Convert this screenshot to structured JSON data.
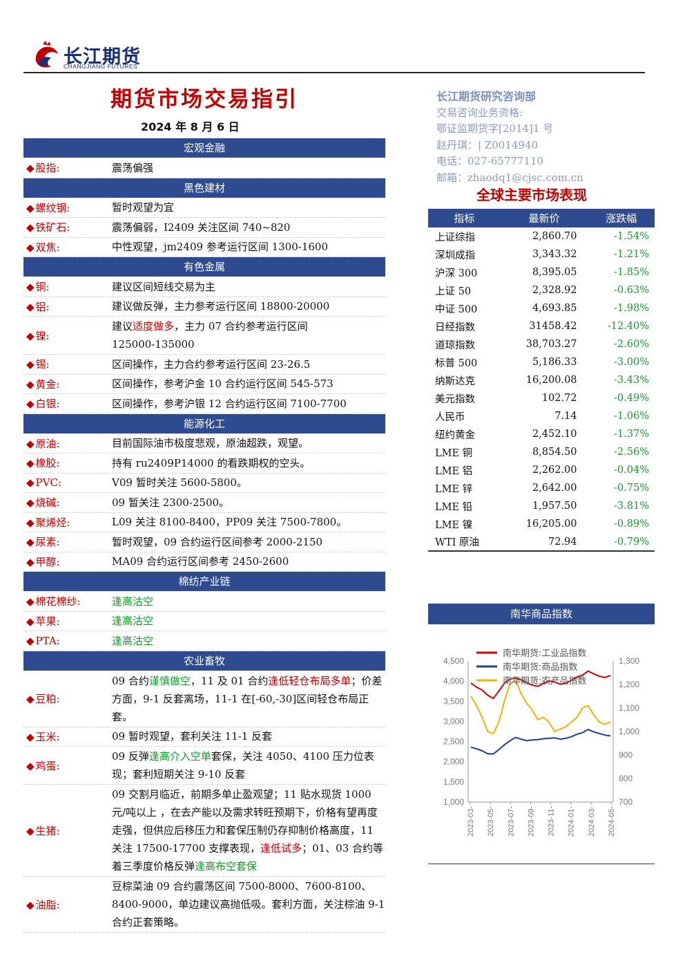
{
  "header": {
    "logo_cn": "长江期货",
    "logo_en": "CHANGJIANG FUTURES",
    "title": "期货市场交易指引",
    "date": "2024 年 8 月 6 日"
  },
  "contact": {
    "dept": "长江期货研究咨询部",
    "line1": "交易咨询业务资格:",
    "line2": "鄂证监期货字[2014]1 号",
    "line3": "赵丹琪：| Z0014940",
    "line4": "电话：027-65777110",
    "line5": "邮箱：zhaodq1@cjsc.com.cn"
  },
  "sections": {
    "macro": "宏观金融",
    "black": "黑色建材",
    "nonferrous": "有色金属",
    "energy": "能源化工",
    "cotton": "棉纺产业链",
    "agri": "农业畜牧"
  },
  "items": {
    "stock": {
      "label": "股指:",
      "v": "震荡偏强"
    },
    "rebar": {
      "label": "螺纹钢:",
      "v": "暂时观望为宜"
    },
    "iron": {
      "label": "铁矿石:",
      "v": "震荡偏弱，I2409 关注区间 740~820"
    },
    "coke": {
      "label": "双焦:",
      "v": "中性观望，jm2409 参考运行区间 1300-1600"
    },
    "copper": {
      "label": "铜:",
      "v": "建议区间短线交易为主"
    },
    "alu": {
      "label": "铝:",
      "v": "建议做反弹，主力参考运行区间 18800-20000"
    },
    "nickel": {
      "label": "镍:",
      "v1": "建议",
      "v2": "适度做多",
      "v3": "，主力 07 合约参考运行区间",
      "v4": "125000-135000"
    },
    "tin": {
      "label": "锡:",
      "v": "区间操作，主力合约参考运行区间 23-26.5"
    },
    "gold": {
      "label": "黄金:",
      "v": "区间操作，参考沪金 10 合约运行区间 545-573"
    },
    "silver": {
      "label": "白银:",
      "v": "区间操作，参考沪银 12 合约运行区间 7100-7700"
    },
    "crude": {
      "label": "原油:",
      "v": "目前国际油市极度悲观，原油超跌，观望。"
    },
    "rubber": {
      "label": "橡胶:",
      "v": "持有 ru2409P14000 的看跌期权的空头。"
    },
    "pvc": {
      "label": "PVC:",
      "v": "V09 暂时关注 5600-5800。"
    },
    "soda": {
      "label": "烧碱:",
      "v": "09 暂关注 2300-2500。"
    },
    "polyolefin": {
      "label": "聚烯烃:",
      "v": "L09 关注 8100-8400，PP09 关注 7500-7800。"
    },
    "urea": {
      "label": "尿素:",
      "v": "暂时观望，09 合约运行区间参考 2000-2150"
    },
    "methanol": {
      "label": "甲醇:",
      "v": "MA09 合约运行区间参考 2450-2600"
    },
    "cottonyarn": {
      "label": "棉花棉纱:",
      "v": "逢高沽空"
    },
    "apple": {
      "label": "苹果:",
      "v": "逢高沽空"
    },
    "pta": {
      "label": "PTA:",
      "v": "逢高沽空"
    },
    "soymeal": {
      "label": "豆粕:",
      "a": "09 合约",
      "b": "谨慎做空",
      "c": "，11 及 01 合约",
      "d": "逢低轻仓布局多单",
      "e": "；价差方面，9-1 反套离场，11-1 在[-60,-30]区间轻仓布局正套。"
    },
    "corn": {
      "label": "玉米:",
      "v": "09 暂时观望，套利关注 11-1 反套"
    },
    "egg": {
      "label": "鸡蛋:",
      "a": "09 反弹",
      "b": "逢高介入空单",
      "c": "套保，关注 4050、4100 压力位表现；套利短期关注 9-10 反套"
    },
    "hog": {
      "label": "生猪:",
      "a": "09 交割月临近，前期多单止盈观望；11 贴水现货 1000 元/吨以上 ，在去产能以及需求转旺预期下，价格有望再度走强，但供应后移压力和套保压制仍存抑制价格高度，11 关注 17500-17700 支撑表现，",
      "b": "逢低试多",
      "c": "；01、03 合约等着三季度价格反弹",
      "d": "逢高布空套保"
    },
    "oil": {
      "label": "油脂:",
      "v": "豆棕菜油 09 合约震荡区间 7500-8000、7600-8100、8400-9000，单边建议高抛低吸。套利方面，关注棕油 9-1 合约正套策略。"
    }
  },
  "market": {
    "title": "全球主要市场表现",
    "headers": [
      "指标",
      "最新价",
      "涨跌幅"
    ],
    "rows": [
      {
        "name": "上证综指",
        "price": "2,860.70",
        "chg": "-1.54%"
      },
      {
        "name": "深圳成指",
        "price": "3,343.32",
        "chg": "-1.21%"
      },
      {
        "name": "沪深 300",
        "price": "8,395.05",
        "chg": "-1.85%"
      },
      {
        "name": "上证 50",
        "price": "2,328.92",
        "chg": "-0.63%"
      },
      {
        "name": "中证 500",
        "price": "4,693.85",
        "chg": "-1.98%"
      },
      {
        "name": "日经指数",
        "price": "31458.42",
        "chg": "-12.40%"
      },
      {
        "name": "道琼指数",
        "price": "38,703.27",
        "chg": "-2.60%"
      },
      {
        "name": "标普 500",
        "price": "5,186.33",
        "chg": "-3.00%"
      },
      {
        "name": "纳斯达克",
        "price": "16,200.08",
        "chg": "-3.43%"
      },
      {
        "name": "美元指数",
        "price": "102.72",
        "chg": "-0.49%"
      },
      {
        "name": "人民币",
        "price": "7.14",
        "chg": "-1.06%"
      },
      {
        "name": "纽约黄金",
        "price": "2,452.10",
        "chg": "-1.37%"
      },
      {
        "name": "LME 铜",
        "price": "8,854.50",
        "chg": "-2.56%"
      },
      {
        "name": "LME 铝",
        "price": "2,262.00",
        "chg": "-0.04%"
      },
      {
        "name": "LME 锌",
        "price": "2,642.00",
        "chg": "-0.75%"
      },
      {
        "name": "LME 铅",
        "price": "1,957.50",
        "chg": "-3.81%"
      },
      {
        "name": "LME 镍",
        "price": "16,205.00",
        "chg": "-0.89%"
      },
      {
        "name": "WTI 原油",
        "price": "72.94",
        "chg": "-0.79%"
      }
    ]
  },
  "nanhua_title": "南华商品指数",
  "chart_data": {
    "type": "line",
    "title": "",
    "left_ylim": [
      1000,
      4500
    ],
    "left_ticks": [
      "4,500",
      "4,000",
      "3,500",
      "3,000",
      "2,500",
      "2,000",
      "1,500",
      "1,000"
    ],
    "right_ylim": [
      700,
      1300
    ],
    "right_ticks": [
      "1,300",
      "1,200",
      "1,100",
      "1,000",
      "900",
      "800",
      "700"
    ],
    "x_ticks": [
      "2023-03-",
      "2023-05-",
      "2023-07-",
      "2023-09-",
      "2023-11-",
      "2024-01-",
      "2024-03-",
      "2024-05-"
    ],
    "series": [
      {
        "name": "南华期货:工业品指数",
        "axis": "left",
        "color": "#d40000",
        "values": [
          3950,
          3850,
          3780,
          3650,
          3570,
          3750,
          3950,
          4050,
          4080,
          4030,
          3960,
          3900,
          3870,
          3950,
          4000,
          3980,
          3920,
          3950,
          4020,
          4100,
          4150,
          4250,
          4180,
          4120,
          4090,
          4140
        ]
      },
      {
        "name": "南华期货:商品指数",
        "axis": "left",
        "color": "#1f3f8a",
        "values": [
          2360,
          2320,
          2270,
          2200,
          2190,
          2300,
          2420,
          2520,
          2600,
          2560,
          2520,
          2540,
          2550,
          2570,
          2580,
          2590,
          2560,
          2580,
          2620,
          2680,
          2720,
          2800,
          2740,
          2700,
          2660,
          2640
        ]
      },
      {
        "name": "南华期货:农产品指数",
        "axis": "right",
        "color": "#f0b400",
        "values": [
          1150,
          1110,
          1060,
          1000,
          990,
          1040,
          1130,
          1200,
          1220,
          1160,
          1120,
          1090,
          1050,
          1060,
          1040,
          1000,
          1010,
          1020,
          1040,
          1060,
          1100,
          1110,
          1070,
          1040,
          1030,
          1040
        ]
      }
    ]
  }
}
